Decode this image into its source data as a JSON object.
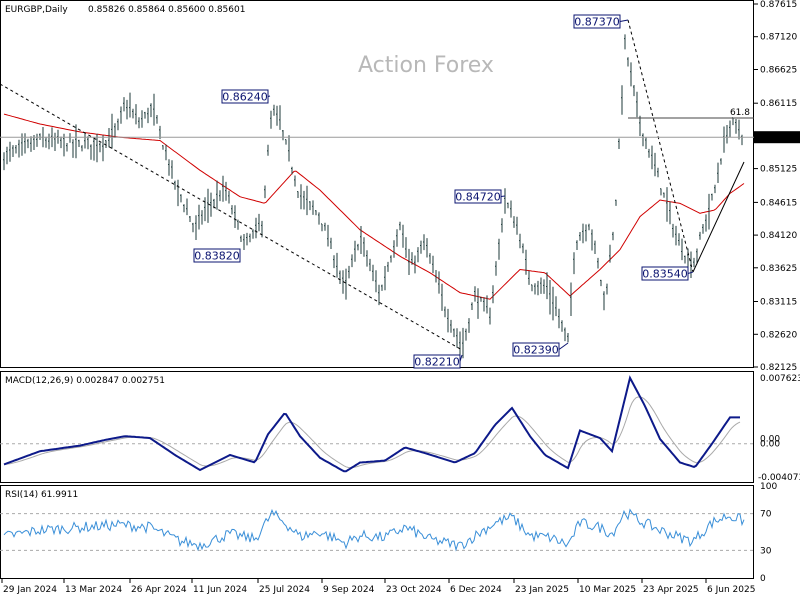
{
  "main": {
    "title": "EURGBP,Daily",
    "ohlc": "0.85826 0.85864 0.85600 0.85601",
    "watermark": "Action Forex",
    "price_ticks": [
      "0.87615",
      "0.87120",
      "0.86625",
      "0.86115",
      "0.85601",
      "0.85125",
      "0.84615",
      "0.84120",
      "0.83625",
      "0.83115",
      "0.82620",
      "0.82125"
    ],
    "current_price": "0.85601",
    "fib_label": "61.8",
    "callouts": [
      {
        "label": "0.83820",
        "price": 0.8382
      },
      {
        "label": "0.86240",
        "price": 0.8624
      },
      {
        "label": "0.82210",
        "price": 0.8221
      },
      {
        "label": "0.84720",
        "price": 0.8472
      },
      {
        "label": "0.82390",
        "price": 0.8239
      },
      {
        "label": "0.87370",
        "price": 0.8737
      },
      {
        "label": "0.83540",
        "price": 0.8354
      }
    ]
  },
  "macd": {
    "title": "MACD(12,26,9) 0.002847 0.002751",
    "ticks": [
      "0.007623",
      "0.00",
      "0.00",
      "-0.004073"
    ]
  },
  "rsi": {
    "title": "RSI(14) 61.9911",
    "ticks": [
      "100",
      "70",
      "30",
      "0"
    ]
  },
  "x_ticks": [
    "29 Jan 2024",
    "13 Mar 2024",
    "26 Apr 2024",
    "11 Jun 2024",
    "25 Jul 2024",
    "9 Sep 2024",
    "23 Oct 2024",
    "6 Dec 2024",
    "23 Jan 2025",
    "10 Mar 2025",
    "23 Apr 2025",
    "6 Jun 2025"
  ],
  "colors": {
    "bars": "#1e3a3a",
    "ma": "#d00000",
    "macd_main": "#0d1a8a",
    "macd_signal": "#aaaaaa",
    "rsi": "#3a8fd8",
    "trendline": "#000000",
    "callout_border": "#0b1470"
  },
  "chart_data": [
    {
      "type": "candlestick",
      "title": "EURGBP,Daily",
      "ylim": [
        0.8212,
        0.8762
      ],
      "annotations": [
        {
          "label": "0.83820",
          "value": 0.8382,
          "x": "Jun 2024"
        },
        {
          "label": "0.86240",
          "value": 0.8624,
          "x": "Jul 2024"
        },
        {
          "label": "0.82210",
          "value": 0.8221,
          "x": "Dec 2024"
        },
        {
          "label": "0.84720",
          "value": 0.8472,
          "x": "Jan 2025"
        },
        {
          "label": "0.82390",
          "value": 0.8239,
          "x": "Feb 2025"
        },
        {
          "label": "0.87370",
          "value": 0.8737,
          "x": "Mar 2025"
        },
        {
          "label": "0.83540",
          "value": 0.8354,
          "x": "May 2025"
        }
      ],
      "last_price": 0.85601,
      "fib_level": {
        "label": "61.8",
        "value": 0.8585
      }
    },
    {
      "type": "line",
      "title": "MACD(12,26,9) 0.002847 0.002751",
      "ylim": [
        -0.004073,
        0.007623
      ]
    },
    {
      "type": "line",
      "title": "RSI(14) 61.9911",
      "ylim": [
        0,
        100
      ],
      "levels": [
        70,
        30
      ]
    }
  ]
}
